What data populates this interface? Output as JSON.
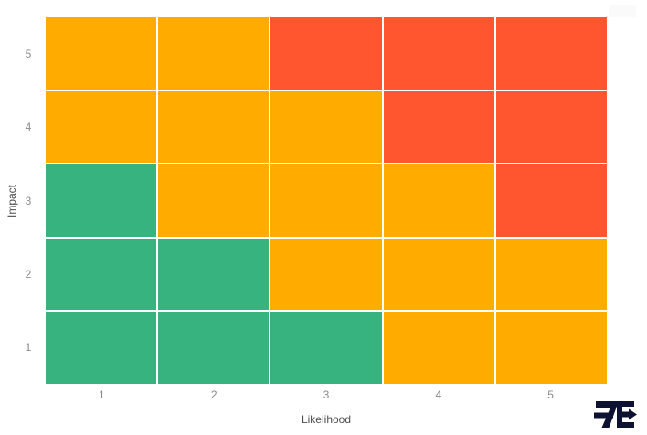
{
  "chart_data": {
    "type": "heatmap",
    "variant": "risk-matrix",
    "title": "",
    "xlabel": "Likelihood",
    "ylabel": "Impact",
    "x_ticks": [
      "1",
      "2",
      "3",
      "4",
      "5"
    ],
    "y_ticks_top_to_bottom": [
      "5",
      "4",
      "3",
      "2",
      "1"
    ],
    "grid": {
      "rows": 5,
      "cols": 5,
      "line_color": "#ffffff",
      "grid_on": true
    },
    "levels_by_row_top_to_bottom": [
      [
        "medium",
        "medium",
        "high",
        "high",
        "high"
      ],
      [
        "medium",
        "medium",
        "medium",
        "high",
        "high"
      ],
      [
        "low",
        "medium",
        "medium",
        "medium",
        "high"
      ],
      [
        "low",
        "low",
        "medium",
        "medium",
        "medium"
      ],
      [
        "low",
        "low",
        "low",
        "medium",
        "medium"
      ]
    ],
    "level_colors": {
      "low": "#36B37E",
      "medium": "#FFAB00",
      "high": "#FF5630"
    },
    "axis_ranges": {
      "x": [
        1,
        5
      ],
      "y": [
        1,
        5
      ]
    },
    "legend_position": "none",
    "tick_label_color": "#8a8a8a",
    "axis_title_color": "#4d4d4d"
  },
  "branding": {
    "logo_text": "7E",
    "logo_color": "#0E1232"
  }
}
